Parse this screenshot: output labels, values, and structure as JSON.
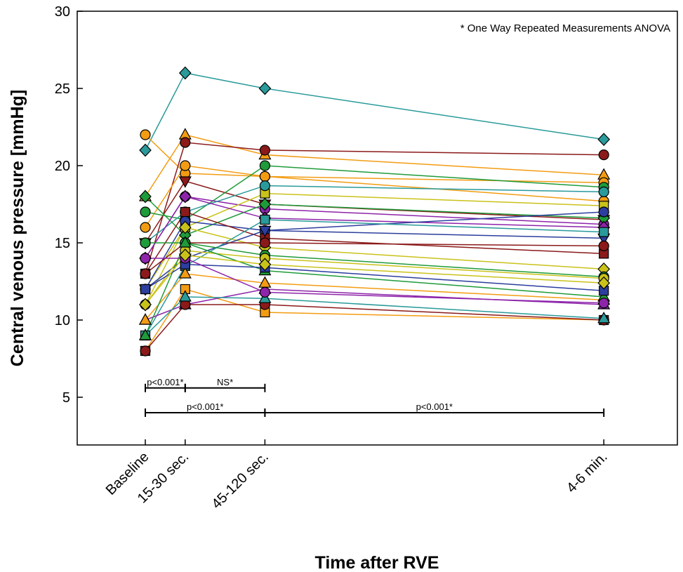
{
  "chart_data": {
    "type": "line",
    "xlabel": "Time after RVE",
    "ylabel": "Central venous pressure [mmHg]",
    "annotation": "* One Way Repeated Measurements ANOVA",
    "ylim": [
      0,
      30
    ],
    "y_ticks": [
      5,
      10,
      15,
      20,
      25,
      30
    ],
    "grid": false,
    "legend": "none",
    "categories": [
      {
        "label": "Baseline",
        "t": 0
      },
      {
        "label": "15-30 sec.",
        "t": 0.5
      },
      {
        "label": "45-120 sec.",
        "t": 1.5
      },
      {
        "label": "4-6 min.",
        "t": 5.75
      }
    ],
    "series": [
      {
        "color": "#2a9a9a",
        "marker": "diamond",
        "values": [
          21,
          26,
          25,
          21.7
        ]
      },
      {
        "color": "#f39c12",
        "marker": "circle",
        "values": [
          22,
          19.5,
          19.3,
          17.7
        ]
      },
      {
        "color": "#f39c12",
        "marker": "triangle-up",
        "values": [
          18,
          22,
          20.7,
          19.4
        ]
      },
      {
        "color": "#8b1a1a",
        "marker": "circle",
        "values": [
          13,
          21.5,
          21,
          20.7
        ]
      },
      {
        "color": "#f39c12",
        "marker": "circle",
        "values": [
          16,
          20,
          19.3,
          18.9
        ]
      },
      {
        "color": "#8b1a1a",
        "marker": "triangle-down",
        "values": [
          15,
          19,
          17.5,
          16.5
        ]
      },
      {
        "color": "#1f9b3a",
        "marker": "circle",
        "values": [
          17,
          16.5,
          20,
          18.6
        ]
      },
      {
        "color": "#8e24aa",
        "marker": "circle",
        "values": [
          14,
          18,
          17.2,
          16.2
        ]
      },
      {
        "color": "#c9c21a",
        "marker": "square",
        "values": [
          12,
          16,
          18.2,
          17.4
        ]
      },
      {
        "color": "#2a9a9a",
        "marker": "circle",
        "values": [
          15,
          17,
          18.7,
          18.3
        ]
      },
      {
        "color": "#1f9b3a",
        "marker": "diamond",
        "values": [
          18,
          15.5,
          17.5,
          16.6
        ]
      },
      {
        "color": "#8e24aa",
        "marker": "diamond",
        "values": [
          14,
          18,
          16.6,
          16
        ]
      },
      {
        "color": "#2c3e9e",
        "marker": "circle",
        "values": [
          12,
          16.4,
          15.8,
          17
        ]
      },
      {
        "color": "#8b1a1a",
        "marker": "square",
        "values": [
          13,
          17,
          15.3,
          14.3
        ]
      },
      {
        "color": "#c9c21a",
        "marker": "diamond",
        "values": [
          11,
          16,
          14.7,
          13.3
        ]
      },
      {
        "color": "#2c3e9e",
        "marker": "triangle-down",
        "values": [
          12,
          14,
          15.8,
          15.3
        ]
      },
      {
        "color": "#2a9a9a",
        "marker": "square",
        "values": [
          9,
          13.5,
          16.5,
          15.7
        ]
      },
      {
        "color": "#8b1a1a",
        "marker": "circle",
        "values": [
          13,
          15,
          15,
          14.8
        ]
      },
      {
        "color": "#1f9b3a",
        "marker": "circle",
        "values": [
          15,
          15,
          14.2,
          12.8
        ]
      },
      {
        "color": "#c9c21a",
        "marker": "circle",
        "values": [
          11,
          14.5,
          14,
          12.7
        ]
      },
      {
        "color": "#f39c12",
        "marker": "square",
        "values": [
          8,
          12,
          10.5,
          10
        ]
      },
      {
        "color": "#8e24aa",
        "marker": "triangle-up",
        "values": [
          10,
          11,
          12,
          11
        ]
      },
      {
        "color": "#8b1a1a",
        "marker": "circle",
        "values": [
          8,
          11,
          11,
          10
        ]
      },
      {
        "color": "#2a9a9a",
        "marker": "triangle-up",
        "values": [
          9,
          11.5,
          11.4,
          10.1
        ]
      },
      {
        "color": "#f39c12",
        "marker": "triangle-up",
        "values": [
          10,
          13,
          12.4,
          11.3
        ]
      },
      {
        "color": "#1f9b3a",
        "marker": "triangle-up",
        "values": [
          9,
          15,
          13.2,
          11.5
        ]
      },
      {
        "color": "#2c3e9e",
        "marker": "square",
        "values": [
          12,
          13.6,
          13.4,
          11.9
        ]
      },
      {
        "color": "#8e24aa",
        "marker": "circle",
        "values": [
          14,
          14,
          11.8,
          11.1
        ]
      },
      {
        "color": "#c9c21a",
        "marker": "diamond",
        "values": [
          11,
          14.2,
          13.6,
          12.4
        ]
      }
    ],
    "significance": [
      {
        "label": "p<0.001*",
        "from": 0,
        "to": 1,
        "y": 5.6
      },
      {
        "label": "NS*",
        "from": 1,
        "to": 2,
        "y": 5.6
      },
      {
        "label": "p<0.001*",
        "from": 0,
        "to": 2,
        "y": 4.0
      },
      {
        "label": "p<0.001*",
        "from": 2,
        "to": 3,
        "y": 4.0
      }
    ]
  }
}
